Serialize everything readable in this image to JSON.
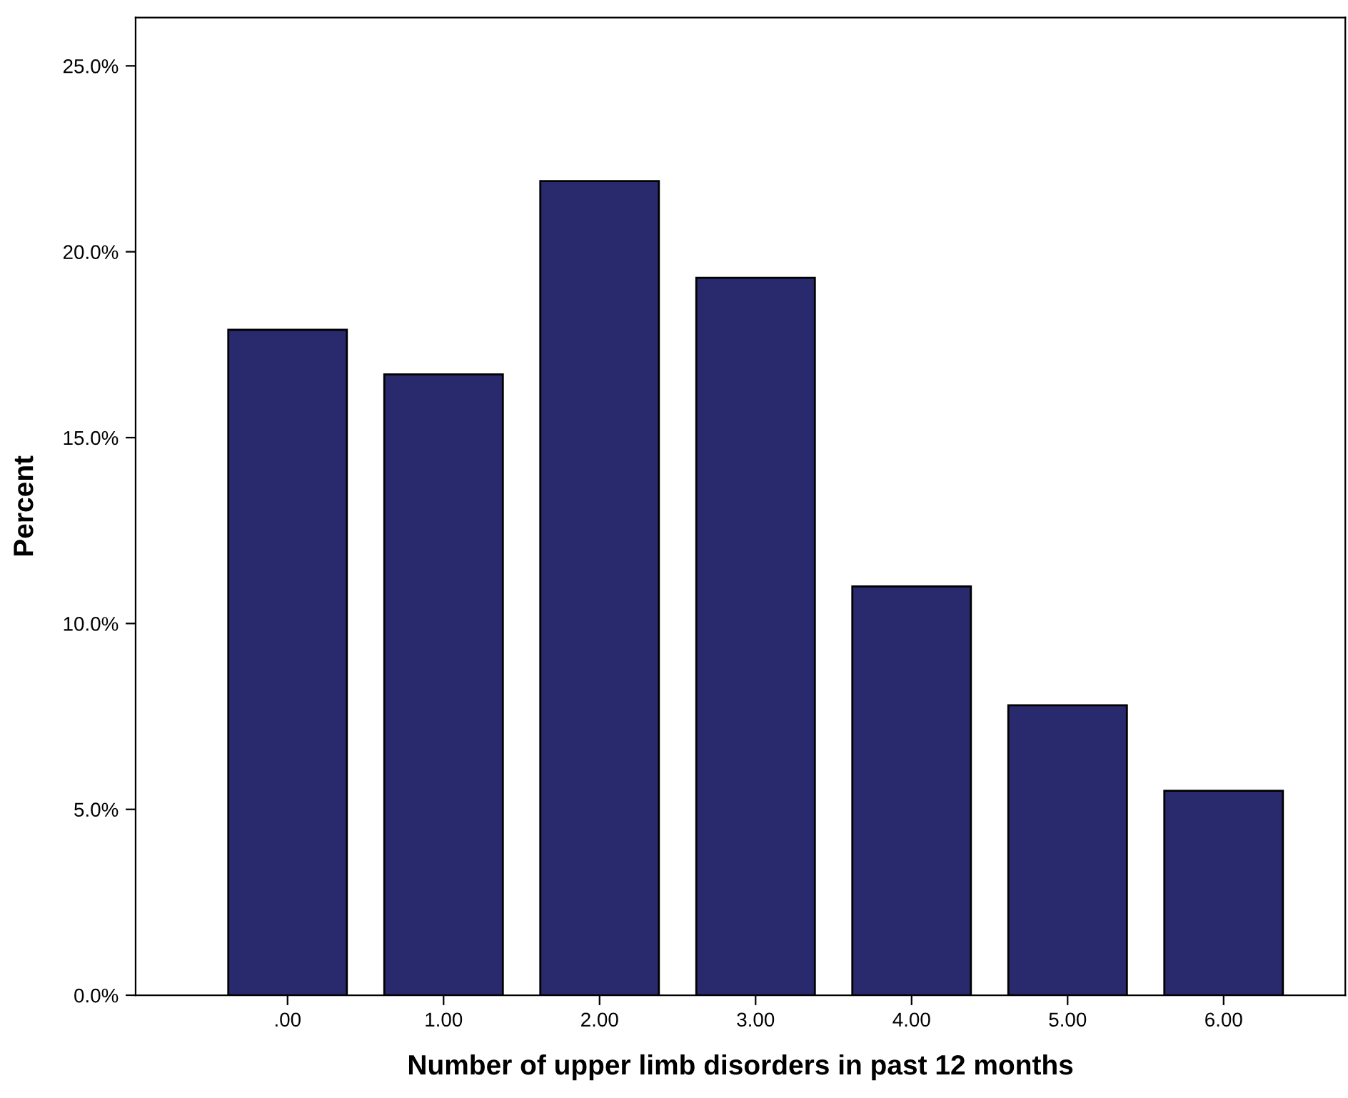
{
  "chart_data": {
    "type": "bar",
    "xlabel": "Number of upper limb disorders in past 12 months",
    "ylabel": "Percent",
    "categories": [
      ".00",
      "1.00",
      "2.00",
      "3.00",
      "4.00",
      "5.00",
      "6.00"
    ],
    "values": [
      17.9,
      16.7,
      21.9,
      19.3,
      11.0,
      7.8,
      5.5
    ],
    "color": "#29296e",
    "ylim": [
      0,
      26.3
    ],
    "yticks": [
      {
        "value": 0,
        "label": "0.0%"
      },
      {
        "value": 5,
        "label": "5.0%"
      },
      {
        "value": 10,
        "label": "10.0%"
      },
      {
        "value": 15,
        "label": "15.0%"
      },
      {
        "value": 20,
        "label": "20.0%"
      },
      {
        "value": 25,
        "label": "25.0%"
      }
    ],
    "grid": false
  }
}
